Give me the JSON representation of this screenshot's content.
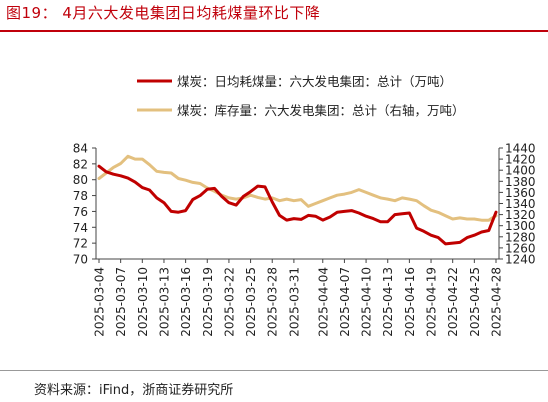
{
  "header": {
    "title": "图19： 4月六大发电集团日均耗煤量环比下降"
  },
  "footer": {
    "source": "资料来源：iFind，浙商证券研究所"
  },
  "colors": {
    "title": "#c0000b",
    "consumption": "#c00000",
    "inventory": "#e3c07f"
  },
  "chart_data": {
    "type": "line",
    "title": "",
    "xlabel": "",
    "ylabel": "",
    "y_left": {
      "min": 70,
      "max": 84,
      "ticks": [
        70,
        72,
        74,
        76,
        78,
        80,
        82,
        84
      ]
    },
    "y_right": {
      "min": 1240,
      "max": 1440,
      "ticks": [
        1240,
        1260,
        1280,
        1300,
        1320,
        1340,
        1360,
        1380,
        1400,
        1420,
        1440
      ]
    },
    "x_tick_labels": [
      "2025-03-04",
      "2025-03-07",
      "2025-03-10",
      "2025-03-13",
      "2025-03-16",
      "2025-03-19",
      "2025-03-22",
      "2025-03-25",
      "2025-03-28",
      "2025-03-31",
      "2025-04-04",
      "2025-04-07",
      "2025-04-10",
      "2025-04-13",
      "2025-04-16",
      "2025-04-19",
      "2025-04-22",
      "2025-04-25",
      "2025-04-28"
    ],
    "grid": false,
    "legend_position": "top",
    "series": [
      {
        "name": "煤炭：日均耗煤量：六大发电集团：总计（万吨）",
        "axis": "left",
        "color": "#c00000",
        "x": [
          "2025-03-04",
          "2025-03-05",
          "2025-03-06",
          "2025-03-07",
          "2025-03-08",
          "2025-03-09",
          "2025-03-10",
          "2025-03-11",
          "2025-03-12",
          "2025-03-13",
          "2025-03-14",
          "2025-03-15",
          "2025-03-16",
          "2025-03-17",
          "2025-03-18",
          "2025-03-19",
          "2025-03-20",
          "2025-03-21",
          "2025-03-22",
          "2025-03-23",
          "2025-03-24",
          "2025-03-25",
          "2025-03-26",
          "2025-03-27",
          "2025-03-28",
          "2025-03-29",
          "2025-03-30",
          "2025-03-31",
          "2025-04-01",
          "2025-04-02",
          "2025-04-03",
          "2025-04-04",
          "2025-04-05",
          "2025-04-06",
          "2025-04-07",
          "2025-04-08",
          "2025-04-09",
          "2025-04-10",
          "2025-04-11",
          "2025-04-12",
          "2025-04-13",
          "2025-04-14",
          "2025-04-15",
          "2025-04-16",
          "2025-04-17",
          "2025-04-18",
          "2025-04-19",
          "2025-04-20",
          "2025-04-21",
          "2025-04-22",
          "2025-04-23",
          "2025-04-24",
          "2025-04-25",
          "2025-04-26",
          "2025-04-27",
          "2025-04-28"
        ],
        "values": [
          81.7,
          81.0,
          80.7,
          80.5,
          80.2,
          79.7,
          79.0,
          78.7,
          77.7,
          77.1,
          76.0,
          75.9,
          76.1,
          77.5,
          78.0,
          78.8,
          78.9,
          77.9,
          77.1,
          76.8,
          77.9,
          78.5,
          79.2,
          79.1,
          77.2,
          75.5,
          74.9,
          75.1,
          75.0,
          75.5,
          75.4,
          74.9,
          75.3,
          75.9,
          76.0,
          76.1,
          75.8,
          75.4,
          75.1,
          74.7,
          74.7,
          75.6,
          75.7,
          75.8,
          73.9,
          73.5,
          73.0,
          72.7,
          71.9,
          72.0,
          72.1,
          72.7,
          73.0,
          73.4,
          73.6,
          75.9
        ]
      },
      {
        "name": "煤炭：库存量：六大发电集团：总计（右轴，万吨）",
        "axis": "right",
        "color": "#e3c07f",
        "x": [
          "2025-03-04",
          "2025-03-05",
          "2025-03-06",
          "2025-03-07",
          "2025-03-08",
          "2025-03-09",
          "2025-03-10",
          "2025-03-11",
          "2025-03-12",
          "2025-03-13",
          "2025-03-14",
          "2025-03-15",
          "2025-03-16",
          "2025-03-17",
          "2025-03-18",
          "2025-03-19",
          "2025-03-20",
          "2025-03-21",
          "2025-03-22",
          "2025-03-23",
          "2025-03-24",
          "2025-03-25",
          "2025-03-26",
          "2025-03-27",
          "2025-03-28",
          "2025-03-29",
          "2025-03-30",
          "2025-03-31",
          "2025-04-01",
          "2025-04-02",
          "2025-04-03",
          "2025-04-04",
          "2025-04-05",
          "2025-04-06",
          "2025-04-07",
          "2025-04-08",
          "2025-04-09",
          "2025-04-10",
          "2025-04-11",
          "2025-04-12",
          "2025-04-13",
          "2025-04-14",
          "2025-04-15",
          "2025-04-16",
          "2025-04-17",
          "2025-04-18",
          "2025-04-19",
          "2025-04-20",
          "2025-04-21",
          "2025-04-22",
          "2025-04-23",
          "2025-04-24",
          "2025-04-25",
          "2025-04-26",
          "2025-04-27",
          "2025-04-28"
        ],
        "values": [
          1385,
          1395,
          1405,
          1412,
          1425,
          1420,
          1420,
          1410,
          1398,
          1396,
          1395,
          1385,
          1382,
          1378,
          1376,
          1368,
          1362,
          1355,
          1350,
          1348,
          1350,
          1355,
          1351,
          1348,
          1350,
          1345,
          1348,
          1345,
          1347,
          1335,
          1340,
          1345,
          1350,
          1355,
          1357,
          1360,
          1365,
          1360,
          1355,
          1350,
          1348,
          1345,
          1350,
          1348,
          1345,
          1336,
          1328,
          1324,
          1318,
          1312,
          1314,
          1312,
          1312,
          1310,
          1310,
          1318
        ]
      }
    ]
  }
}
